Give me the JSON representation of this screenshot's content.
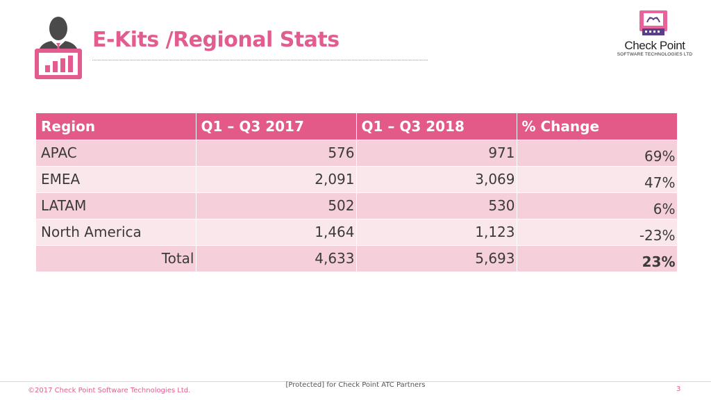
{
  "slide": {
    "title": "E-Kits /Regional Stats",
    "header_icon": "person-with-chart-icon"
  },
  "logo": {
    "icon": "check-point-monitor-icon",
    "name": "Check Point",
    "subtitle": "SOFTWARE TECHNOLOGIES LTD"
  },
  "table": {
    "headers": [
      "Region",
      "Q1 – Q3 2017",
      "Q1 – Q3 2018",
      "% Change"
    ],
    "rows": [
      [
        "APAC",
        "576",
        "971",
        "69%"
      ],
      [
        "EMEA",
        "2,091",
        "3,069",
        "47%"
      ],
      [
        "LATAM",
        "502",
        "530",
        "6%"
      ],
      [
        "North America",
        "1,464",
        "1,123",
        "-23%"
      ]
    ],
    "total": [
      "Total",
      "4,633",
      "5,693",
      "23%"
    ]
  },
  "footer": {
    "copyright": "©2017 Check Point Software Technologies Ltd.",
    "classification": "[Protected] for Check Point ATC Partners",
    "page_number": "3"
  },
  "colors": {
    "accent": "#e25c8f",
    "header_row": "#e35a89",
    "row_dark": "#f5cfd9",
    "row_light": "#fae7ec"
  }
}
